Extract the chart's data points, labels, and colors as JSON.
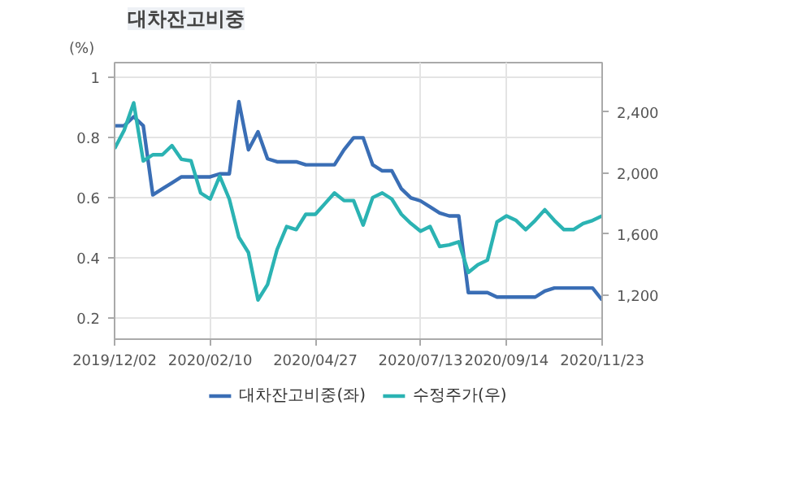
{
  "chart_data": {
    "type": "line",
    "title": "대차잔고비중",
    "ylabel": "(%)",
    "x": [
      "2019-12-02",
      "2019-12-09",
      "2019-12-16",
      "2019-12-23",
      "2019-12-30",
      "2020-01-06",
      "2020-01-13",
      "2020-01-20",
      "2020-01-27",
      "2020-02-03",
      "2020-02-10",
      "2020-02-17",
      "2020-02-24",
      "2020-03-02",
      "2020-03-09",
      "2020-03-16",
      "2020-03-23",
      "2020-03-30",
      "2020-04-06",
      "2020-04-13",
      "2020-04-20",
      "2020-04-27",
      "2020-05-04",
      "2020-05-11",
      "2020-05-18",
      "2020-05-25",
      "2020-06-01",
      "2020-06-08",
      "2020-06-15",
      "2020-06-22",
      "2020-06-29",
      "2020-07-06",
      "2020-07-13",
      "2020-07-20",
      "2020-07-27",
      "2020-08-03",
      "2020-08-10",
      "2020-08-17",
      "2020-08-24",
      "2020-08-31",
      "2020-09-07",
      "2020-09-14",
      "2020-09-21",
      "2020-09-28",
      "2020-10-05",
      "2020-10-12",
      "2020-10-19",
      "2020-10-26",
      "2020-11-02",
      "2020-11-09",
      "2020-11-16",
      "2020-11-23"
    ],
    "series": [
      {
        "name": "대차잔고비중(좌)",
        "color": "#3a6eb5",
        "values": [
          0.84,
          0.84,
          0.87,
          0.84,
          0.61,
          0.63,
          0.65,
          0.67,
          0.67,
          0.67,
          0.67,
          0.68,
          0.68,
          0.92,
          0.76,
          0.82,
          0.73,
          0.72,
          0.72,
          0.72,
          0.71,
          0.71,
          0.71,
          0.71,
          0.76,
          0.8,
          0.8,
          0.71,
          0.69,
          0.69,
          0.63,
          0.6,
          0.59,
          0.57,
          0.55,
          0.54,
          0.54,
          0.285,
          0.285,
          0.285,
          0.27,
          0.27,
          0.27,
          0.27,
          0.27,
          0.29,
          0.3,
          0.3,
          0.3,
          0.3,
          0.3,
          0.26
        ]
      },
      {
        "name": "수정주가(우)",
        "color": "#2bb3b3",
        "axis": "y2",
        "values": [
          2160,
          2280,
          2460,
          2080,
          2120,
          2120,
          2180,
          2090,
          2080,
          1870,
          1830,
          1980,
          1830,
          1580,
          1480,
          1170,
          1270,
          1500,
          1650,
          1630,
          1730,
          1730,
          1800,
          1870,
          1820,
          1820,
          1660,
          1840,
          1870,
          1830,
          1730,
          1670,
          1620,
          1650,
          1520,
          1530,
          1550,
          1350,
          1400,
          1430,
          1680,
          1720,
          1690,
          1630,
          1690,
          1760,
          1690,
          1630,
          1630,
          1670,
          1690,
          1720
        ]
      }
    ],
    "xlim": [
      "2019-12-02",
      "2020-11-23"
    ],
    "xticks": [
      {
        "value": "2019-12-02",
        "label": "2019/12/02"
      },
      {
        "value": "2020-02-10",
        "label": "2020/02/10"
      },
      {
        "value": "2020-04-27",
        "label": "2020/04/27"
      },
      {
        "value": "2020-07-13",
        "label": "2020/07/13"
      },
      {
        "value": "2020-09-14",
        "label": "2020/09/14"
      },
      {
        "value": "2020-11-23",
        "label": "2020/11/23"
      }
    ],
    "ylim": [
      0.13,
      1.05
    ],
    "yticks": [
      0.2,
      0.4,
      0.6,
      0.8,
      1
    ],
    "y2lim": [
      913,
      2723
    ],
    "y2ticks": [
      {
        "value": 1200,
        "label": "1,200"
      },
      {
        "value": 1600,
        "label": "1,600"
      },
      {
        "value": 2000,
        "label": "2,000"
      },
      {
        "value": 2400,
        "label": "2,400"
      }
    ],
    "grid": true,
    "legend": "bottom",
    "line_style": "solid",
    "marker": "none"
  }
}
